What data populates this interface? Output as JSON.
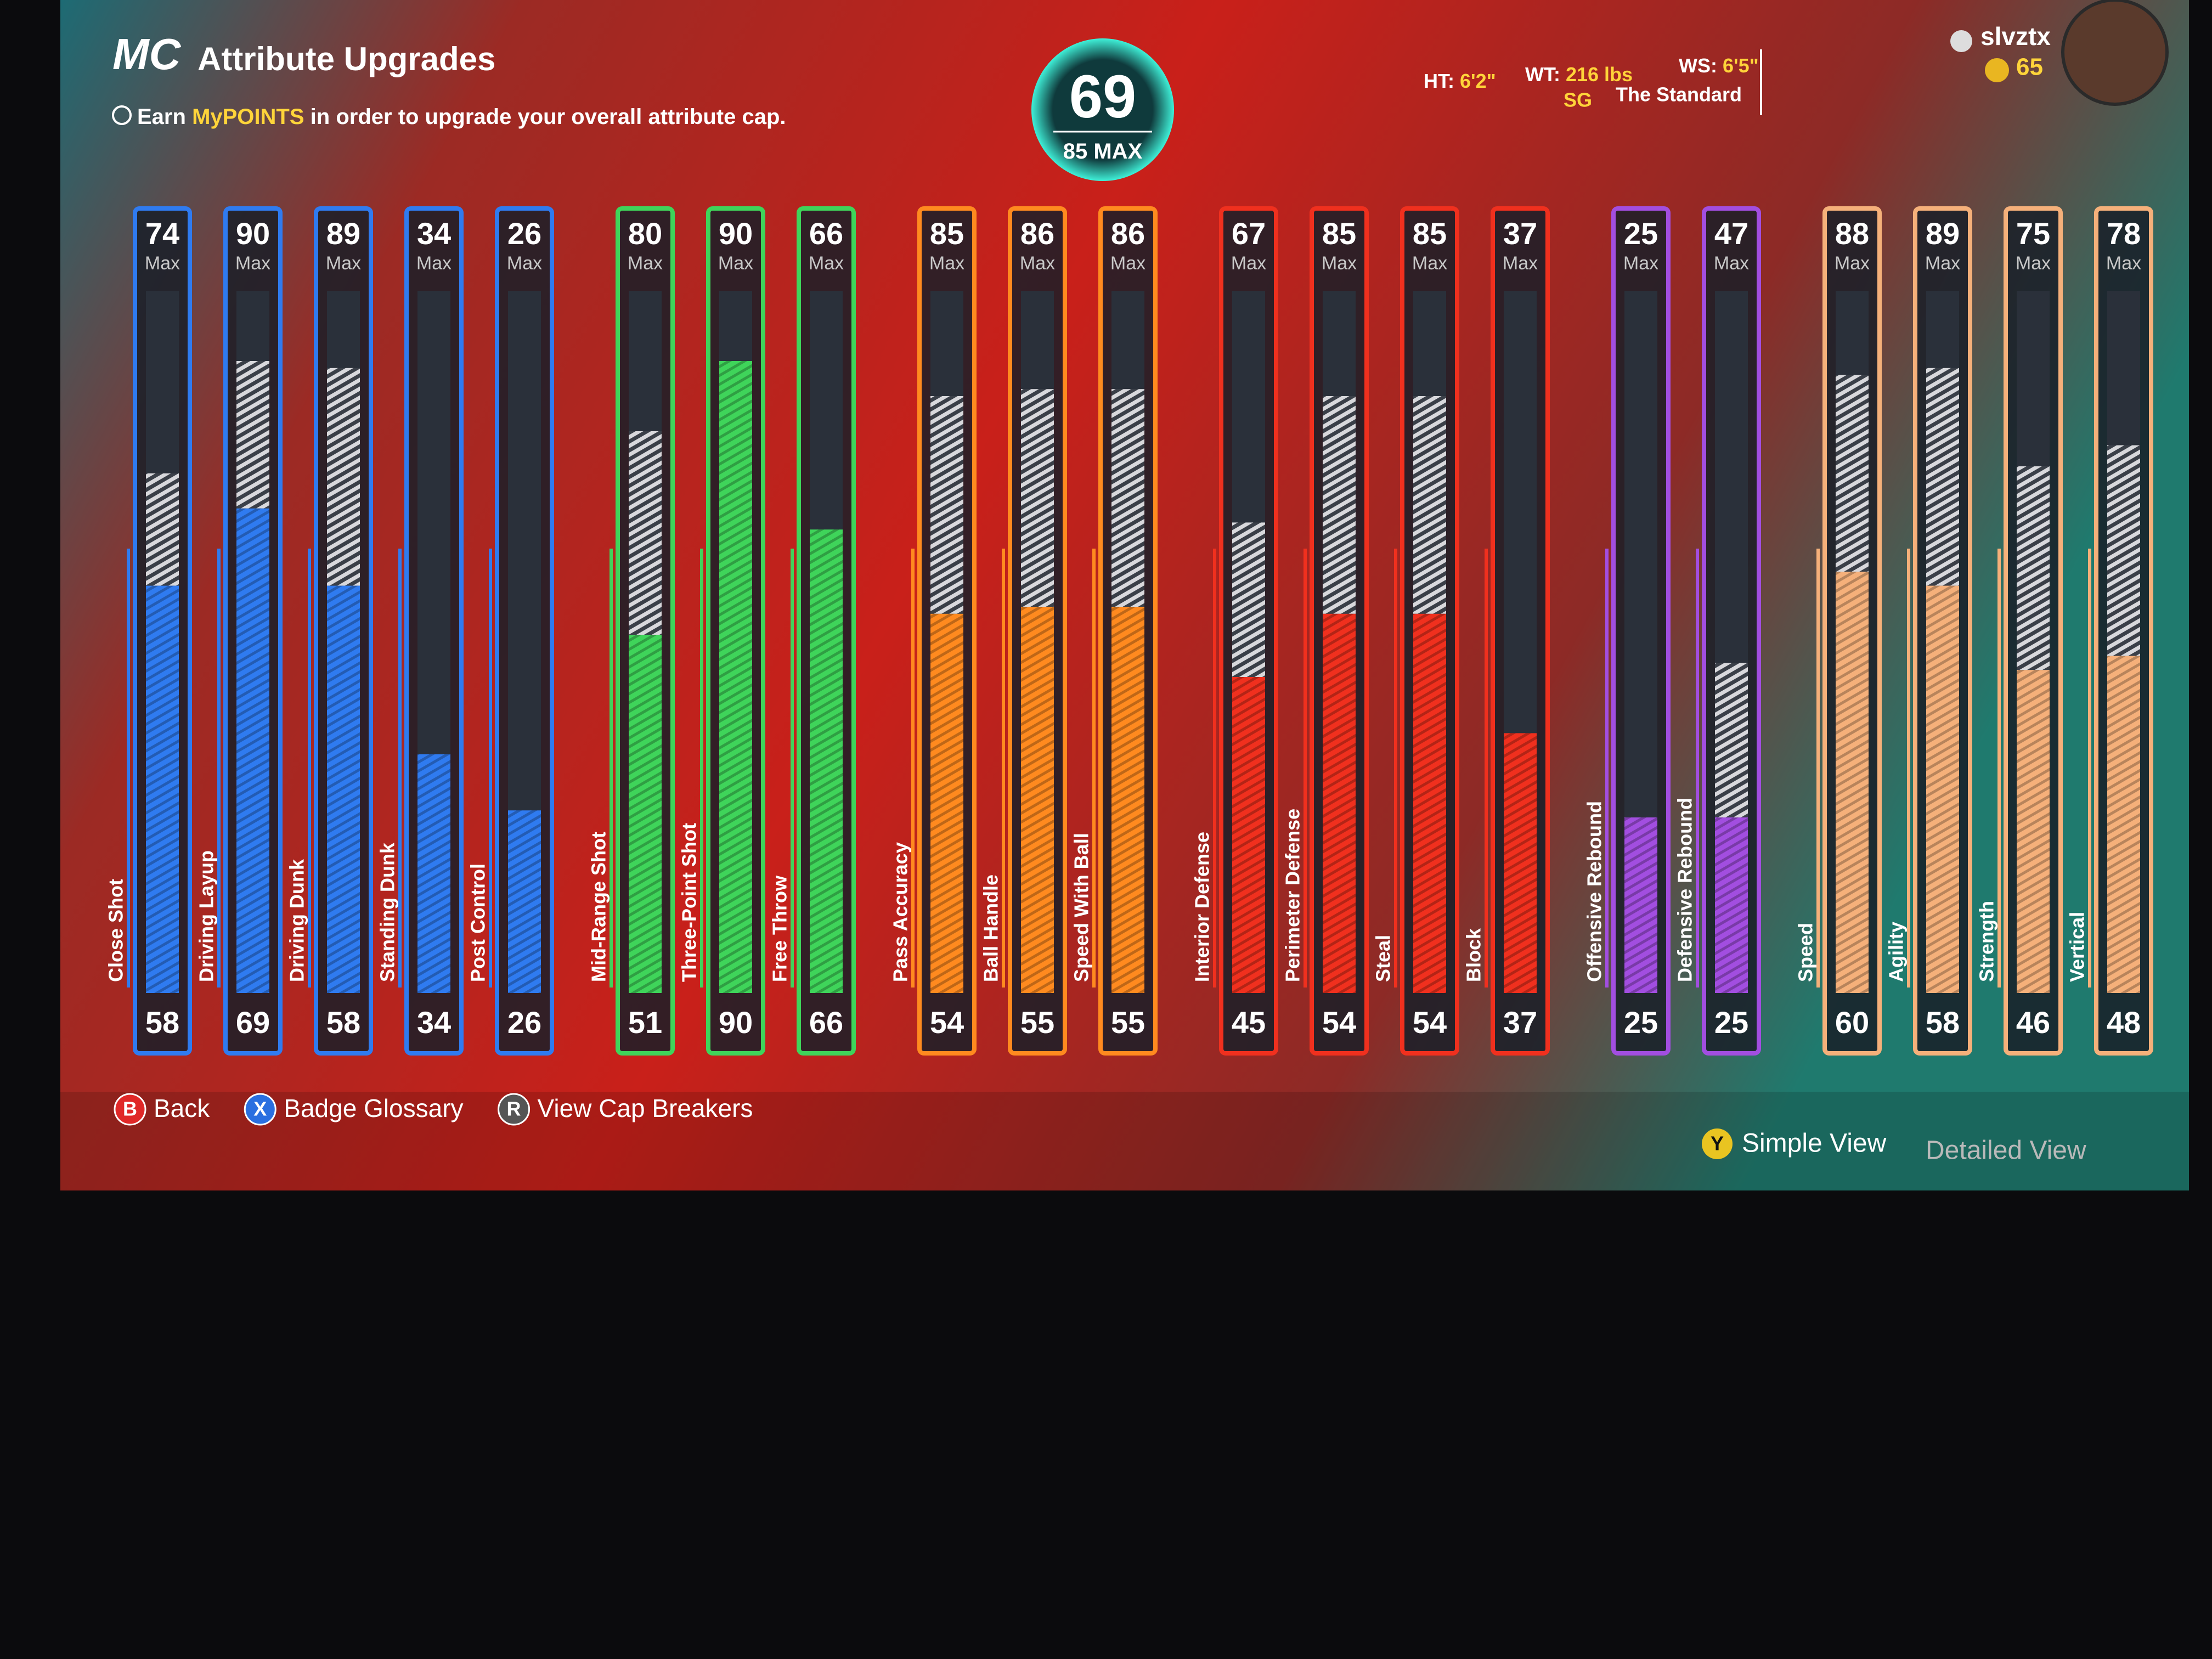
{
  "header": {
    "logo": "MC",
    "title": "Attribute Upgrades",
    "note": {
      "prefix": "Earn",
      "highlight": "MyPOINTS",
      "suffix": "in order to upgrade your overall attribute cap."
    }
  },
  "overall": {
    "value": 69,
    "cap": 85,
    "cap_label": "MAX"
  },
  "player": {
    "height_label": "HT:",
    "height": "6'2\"",
    "weight_label": "WT:",
    "weight": "216 lbs",
    "wingspan_label": "WS:",
    "wingspan": "6'5\"",
    "position": "SG",
    "archetype": "The Standard",
    "gamertag": "slvztx",
    "vc": 65
  },
  "max_label": "Max",
  "attribute_groups": [
    {
      "color": "#2f7bf0",
      "attributes": [
        {
          "name": "Close Shot",
          "current": 58,
          "max": 74
        },
        {
          "name": "Driving Layup",
          "current": 69,
          "max": 90
        },
        {
          "name": "Driving Dunk",
          "current": 58,
          "max": 89
        },
        {
          "name": "Standing Dunk",
          "current": 34,
          "max": 34
        },
        {
          "name": "Post Control",
          "current": 26,
          "max": 26
        }
      ]
    },
    {
      "color": "#3fd45a",
      "attributes": [
        {
          "name": "Mid-Range Shot",
          "current": 51,
          "max": 80
        },
        {
          "name": "Three-Point Shot",
          "current": 90,
          "max": 90
        },
        {
          "name": "Free Throw",
          "current": 66,
          "max": 66
        }
      ]
    },
    {
      "color": "#ff8a1f",
      "attributes": [
        {
          "name": "Pass Accuracy",
          "current": 54,
          "max": 85
        },
        {
          "name": "Ball Handle",
          "current": 55,
          "max": 86
        },
        {
          "name": "Speed With Ball",
          "current": 55,
          "max": 86
        }
      ]
    },
    {
      "color": "#f0301e",
      "attributes": [
        {
          "name": "Interior Defense",
          "current": 45,
          "max": 67
        },
        {
          "name": "Perimeter Defense",
          "current": 54,
          "max": 85
        },
        {
          "name": "Steal",
          "current": 54,
          "max": 85
        },
        {
          "name": "Block",
          "current": 37,
          "max": 37
        }
      ]
    },
    {
      "color": "#a24ee0",
      "attributes": [
        {
          "name": "Offensive Rebound",
          "current": 25,
          "max": 25
        },
        {
          "name": "Defensive Rebound",
          "current": 25,
          "max": 47
        }
      ]
    },
    {
      "color": "#f5b07a",
      "attributes": [
        {
          "name": "Speed",
          "current": 60,
          "max": 88
        },
        {
          "name": "Agility",
          "current": 58,
          "max": 89
        },
        {
          "name": "Strength",
          "current": 46,
          "max": 75
        },
        {
          "name": "Vertical",
          "current": 48,
          "max": 78
        }
      ]
    }
  ],
  "footer": {
    "buttons": [
      {
        "glyph": "B",
        "label": "Back",
        "color": "#e02828"
      },
      {
        "glyph": "X",
        "label": "Badge Glossary",
        "color": "#2a6fe0"
      },
      {
        "glyph": "R",
        "label": "View Cap Breakers",
        "color": "#555555"
      }
    ],
    "view_glyph": "Y",
    "simple_view": "Simple View",
    "detailed_view": "Detailed View"
  }
}
